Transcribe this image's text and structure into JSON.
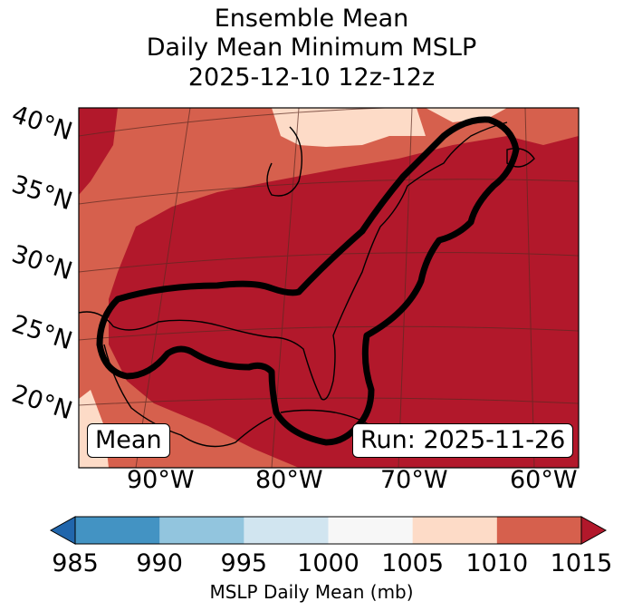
{
  "title": {
    "line1": "Ensemble Mean",
    "line2": "Daily Mean Minimum MSLP",
    "line3": "2025-12-10 12z-12z"
  },
  "map": {
    "lat_labels": [
      "40°N",
      "35°N",
      "30°N",
      "25°N",
      "20°N"
    ],
    "lon_labels": [
      "90°W",
      "80°W",
      "70°W",
      "60°W"
    ],
    "mean_box": "Mean",
    "run_box": "Run: 2025-11-26"
  },
  "colorbar": {
    "label": "MSLP Daily Mean (mb)",
    "ticks": [
      "985",
      "990",
      "995",
      "1000",
      "1005",
      "1010",
      "1015"
    ],
    "colors": [
      "#2166ac",
      "#4393c3",
      "#92c5de",
      "#d1e5f0",
      "#f7f7f7",
      "#fddbc7",
      "#d6604d",
      "#b2182b"
    ]
  },
  "colors": {
    "field_high": "#b2182b",
    "field_mid": "#d6604d",
    "field_low": "#fddbc7",
    "contour": "#000000"
  }
}
